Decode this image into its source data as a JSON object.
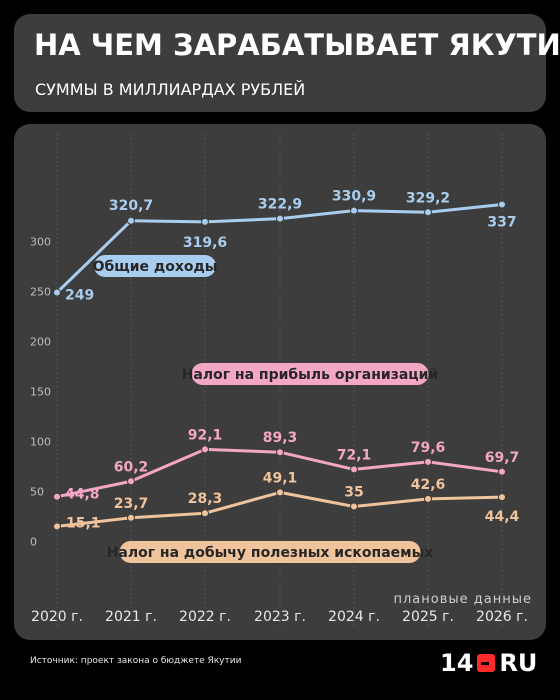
{
  "header": {
    "title": "НА ЧЕМ ЗАРАБАТЫВАЕТ ЯКУТИЯ",
    "subtitle": "СУММЫ В МИЛЛИАРДАХ РУБЛЕЙ"
  },
  "chart_data": {
    "type": "line",
    "categories": [
      "2020 г.",
      "2021 г.",
      "2022 г.",
      "2023 г.",
      "2024 г.",
      "2025 г.",
      "2026 г."
    ],
    "yticks": [
      0,
      50,
      100,
      150,
      200,
      250,
      300
    ],
    "ylim": [
      0,
      350
    ],
    "grid": "vertical",
    "planned_note": "плановые данные",
    "series": [
      {
        "name": "Общие доходы",
        "values": [
          249,
          320.7,
          319.6,
          322.9,
          330.9,
          329.2,
          337
        ],
        "labels": [
          "249",
          "320,7",
          "319,6",
          "322,9",
          "330,9",
          "329,2",
          "337"
        ],
        "color": "#a9cdef"
      },
      {
        "name": "Налог на прибыль организаций",
        "values": [
          44.8,
          60.2,
          92.1,
          89.3,
          72.1,
          79.6,
          69.7
        ],
        "labels": [
          "44,8",
          "60,2",
          "92,1",
          "89,3",
          "72,1",
          "79,6",
          "69,7"
        ],
        "color": "#f4a7c4"
      },
      {
        "name": "Налог на добычу полезных ископаемых",
        "values": [
          15.1,
          23.7,
          28.3,
          49.1,
          35,
          42.6,
          44.4
        ],
        "labels": [
          "15,1",
          "23,7",
          "28,3",
          "49,1",
          "35",
          "42,6",
          "44,4"
        ],
        "color": "#efc39b"
      }
    ]
  },
  "footer": {
    "source": "Источник: проект закона о бюджете Якутии",
    "logo_number": "14",
    "logo_domain": "RU"
  }
}
